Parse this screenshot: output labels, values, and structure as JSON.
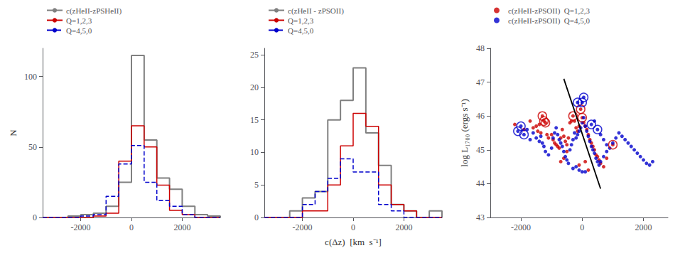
{
  "chart_data": [
    {
      "type": "histogram",
      "ylabel": "N",
      "bins": [
        -3500,
        -3000,
        -2500,
        -2000,
        -1500,
        -1000,
        -500,
        0,
        500,
        1000,
        1500,
        2000,
        2500,
        3000,
        3500
      ],
      "series": [
        {
          "name": "c(zHeII-zPSHeII)",
          "color": "#808080",
          "line_style": "solid",
          "values": [
            0,
            0,
            1,
            2,
            3,
            8,
            25,
            115,
            55,
            28,
            20,
            8,
            2,
            1
          ]
        },
        {
          "name": "Q=1,2,3",
          "color": "#cc0000",
          "line_style": "solid",
          "values": [
            0,
            0,
            0,
            0,
            1,
            3,
            40,
            65,
            50,
            23,
            5,
            2,
            0,
            0
          ]
        },
        {
          "name": "Q=4,5,0",
          "color": "#0000cc",
          "line_style": "dashed",
          "values": [
            0,
            0,
            0,
            1,
            2,
            15,
            38,
            51,
            25,
            12,
            8,
            2,
            0,
            0
          ]
        }
      ],
      "xlim": [
        -3500,
        3500
      ],
      "xticks": [
        -2000,
        0,
        2000
      ],
      "ylim": [
        0,
        120
      ],
      "yticks": [
        0,
        50,
        100
      ],
      "grid": false,
      "legend": "upper left"
    },
    {
      "type": "histogram",
      "xlabel": "c(Δz)  [km  s⁻¹]",
      "bins": [
        -3500,
        -3000,
        -2500,
        -2000,
        -1500,
        -1000,
        -500,
        0,
        500,
        1000,
        1500,
        2000,
        2500,
        3000,
        3500
      ],
      "series": [
        {
          "name": "c(zHeII - zPSOII)",
          "color": "#808080",
          "line_style": "solid",
          "values": [
            0,
            0,
            1,
            3,
            4,
            15,
            18,
            23,
            13,
            8,
            2,
            1,
            0,
            1
          ]
        },
        {
          "name": "Q=1,2,3",
          "color": "#cc0000",
          "line_style": "solid",
          "values": [
            0,
            0,
            0,
            1,
            1,
            5,
            11,
            16,
            14,
            5,
            2,
            1,
            0,
            0
          ]
        },
        {
          "name": "Q=4,5,0",
          "color": "#0000cc",
          "line_style": "dashed",
          "values": [
            0,
            0,
            0,
            2,
            4,
            6,
            9,
            7,
            7,
            2,
            1,
            0,
            0,
            0
          ]
        }
      ],
      "xlim": [
        -3500,
        3500
      ],
      "xticks": [
        -2000,
        0,
        2000
      ],
      "ylim": [
        0,
        26
      ],
      "yticks": [
        0,
        5,
        10,
        15,
        20,
        25
      ],
      "grid": false,
      "legend": "upper left"
    },
    {
      "type": "scatter",
      "ylabel": "log L₁₇₀₀ (ergs s⁻¹)",
      "series": [
        {
          "name": "c(zHeII-zPSOII)  Q=1,2,3",
          "type": "scatter",
          "marker": "circle",
          "color": "#cc0000",
          "values": [
            [
              -2200,
              45.75
            ],
            [
              -1900,
              45.6
            ],
            [
              -1700,
              45.85
            ],
            [
              -1600,
              45.65
            ],
            [
              -1500,
              45.7
            ],
            [
              -1450,
              45.55
            ],
            [
              -1400,
              45.75
            ],
            [
              -1350,
              45.5
            ],
            [
              -1300,
              46.0
            ],
            [
              -1250,
              45.85
            ],
            [
              -1200,
              45.8
            ],
            [
              -1150,
              45.45
            ],
            [
              -1100,
              45.35
            ],
            [
              -1000,
              45.45
            ],
            [
              -950,
              45.3
            ],
            [
              -900,
              45.2
            ],
            [
              -850,
              45.15
            ],
            [
              -800,
              45.1
            ],
            [
              -750,
              45.05
            ],
            [
              -700,
              45.35
            ],
            [
              -650,
              45.6
            ],
            [
              -600,
              45.4
            ],
            [
              -550,
              45.25
            ],
            [
              -500,
              45.15
            ],
            [
              -450,
              45.35
            ],
            [
              -400,
              45.8
            ],
            [
              -350,
              45.85
            ],
            [
              -300,
              46.0
            ],
            [
              -250,
              45.85
            ],
            [
              -200,
              45.65
            ],
            [
              -150,
              45.55
            ],
            [
              -100,
              45.7
            ],
            [
              -50,
              46.2
            ],
            [
              0,
              45.95
            ],
            [
              50,
              45.8
            ],
            [
              100,
              45.7
            ],
            [
              150,
              45.6
            ],
            [
              200,
              45.45
            ],
            [
              250,
              45.3
            ],
            [
              300,
              45.2
            ],
            [
              350,
              45.1
            ],
            [
              400,
              45.0
            ],
            [
              450,
              44.85
            ],
            [
              500,
              44.8
            ],
            [
              550,
              44.7
            ],
            [
              600,
              44.6
            ],
            [
              700,
              44.5
            ],
            [
              800,
              44.75
            ],
            [
              1000,
              45.15
            ],
            [
              -100,
              44.55
            ],
            [
              100,
              44.65
            ],
            [
              200,
              44.4
            ],
            [
              -500,
              44.95
            ],
            [
              -600,
              44.75
            ],
            [
              -700,
              44.65
            ]
          ]
        },
        {
          "name": "c(zHeII-zPSOII)  Q=4,5,0",
          "type": "scatter",
          "marker": "circle",
          "color": "#0000cc",
          "values": [
            [
              -2100,
              45.55
            ],
            [
              -2000,
              45.7
            ],
            [
              -1900,
              45.45
            ],
            [
              -1800,
              45.6
            ],
            [
              -1700,
              45.3
            ],
            [
              -1600,
              45.5
            ],
            [
              -1500,
              45.35
            ],
            [
              -1400,
              45.25
            ],
            [
              -1350,
              45.4
            ],
            [
              -1300,
              45.2
            ],
            [
              -1250,
              45.1
            ],
            [
              -1200,
              44.95
            ],
            [
              -1100,
              44.85
            ],
            [
              -1000,
              45.05
            ],
            [
              -950,
              45.35
            ],
            [
              -900,
              45.5
            ],
            [
              -850,
              45.65
            ],
            [
              -800,
              45.45
            ],
            [
              -750,
              45.3
            ],
            [
              -700,
              45.2
            ],
            [
              -650,
              45.1
            ],
            [
              -600,
              44.95
            ],
            [
              -550,
              44.8
            ],
            [
              -500,
              44.7
            ],
            [
              -450,
              44.6
            ],
            [
              -400,
              45.0
            ],
            [
              -350,
              45.15
            ],
            [
              -300,
              45.3
            ],
            [
              -250,
              45.5
            ],
            [
              -200,
              45.35
            ],
            [
              -150,
              45.45
            ],
            [
              -100,
              45.55
            ],
            [
              -50,
              45.65
            ],
            [
              0,
              45.8
            ],
            [
              50,
              45.95
            ],
            [
              100,
              45.7
            ],
            [
              150,
              45.55
            ],
            [
              200,
              45.4
            ],
            [
              250,
              45.25
            ],
            [
              300,
              45.1
            ],
            [
              350,
              45.0
            ],
            [
              400,
              44.9
            ],
            [
              450,
              44.75
            ],
            [
              500,
              44.65
            ],
            [
              550,
              44.55
            ],
            [
              600,
              44.65
            ],
            [
              700,
              44.8
            ],
            [
              800,
              44.95
            ],
            [
              900,
              45.05
            ],
            [
              1000,
              45.2
            ],
            [
              1100,
              45.35
            ],
            [
              1200,
              45.5
            ],
            [
              1300,
              45.4
            ],
            [
              1400,
              45.3
            ],
            [
              1500,
              45.2
            ],
            [
              1600,
              45.1
            ],
            [
              1700,
              45.0
            ],
            [
              1800,
              44.9
            ],
            [
              1900,
              44.8
            ],
            [
              2000,
              44.7
            ],
            [
              2100,
              44.6
            ],
            [
              2200,
              44.55
            ],
            [
              2300,
              44.65
            ],
            [
              -100,
              44.4
            ],
            [
              0,
              44.35
            ],
            [
              100,
              44.35
            ],
            [
              -200,
              44.5
            ],
            [
              -300,
              44.45
            ],
            [
              500,
              45.6
            ],
            [
              600,
              45.45
            ],
            [
              700,
              45.3
            ],
            [
              800,
              45.15
            ],
            [
              300,
              45.75
            ],
            [
              400,
              45.85
            ],
            [
              -150,
              46.4
            ],
            [
              0,
              46.4
            ],
            [
              50,
              46.55
            ]
          ]
        },
        {
          "type": "scatter",
          "marker": "open circle",
          "color": "#cc0000",
          "values": [
            [
              -1300,
              46.0
            ],
            [
              -1250,
              45.85
            ],
            [
              -1200,
              45.8
            ],
            [
              -300,
              46.0
            ],
            [
              -50,
              46.2
            ],
            [
              0,
              45.95
            ],
            [
              1000,
              45.15
            ]
          ]
        },
        {
          "type": "scatter",
          "marker": "open circle",
          "color": "#0000cc",
          "values": [
            [
              -2100,
              45.55
            ],
            [
              -2000,
              45.7
            ],
            [
              -1900,
              45.45
            ],
            [
              -150,
              46.4
            ],
            [
              0,
              46.4
            ],
            [
              50,
              46.55
            ],
            [
              500,
              45.6
            ],
            [
              300,
              45.75
            ]
          ]
        },
        {
          "type": "line",
          "line_style": "solid",
          "color": "#000000",
          "values": [
            [
              -600,
              47.1
            ],
            [
              600,
              43.85
            ]
          ]
        }
      ],
      "xlim": [
        -3000,
        2800
      ],
      "xticks": [
        -2000,
        0,
        2000
      ],
      "ylim": [
        43,
        48
      ],
      "yticks": [
        43,
        44,
        45,
        46,
        47,
        48
      ],
      "grid": false,
      "legend": "upper left"
    }
  ]
}
